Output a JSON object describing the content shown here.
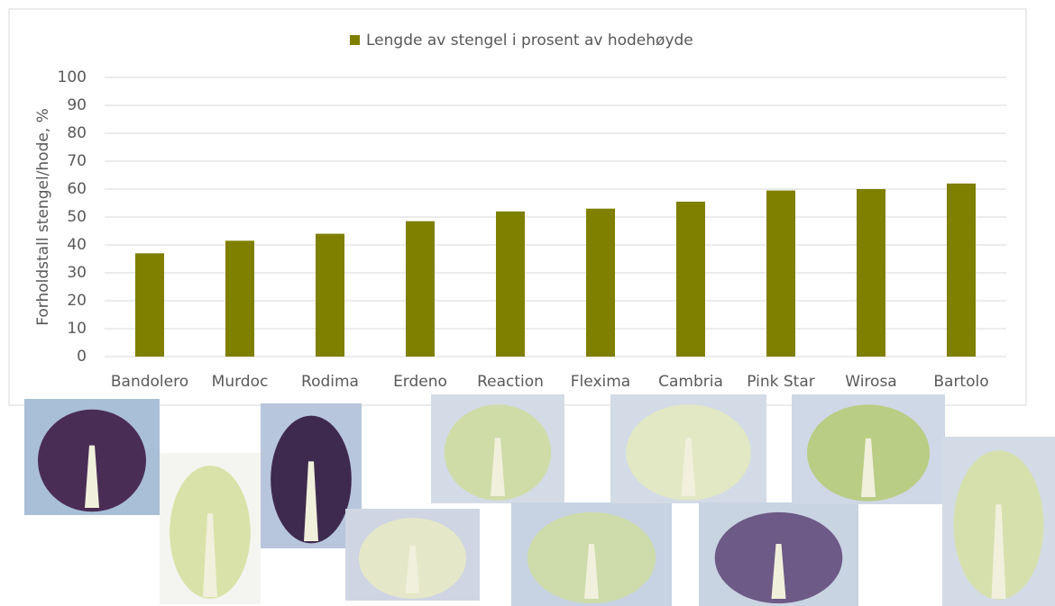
{
  "chart_data": {
    "type": "bar",
    "legend": "Lengde av stengel i prosent av hodehøyde",
    "y_label": "Forholdstall stengel/hode, %",
    "categories": [
      "Bandolero",
      "Murdoc",
      "Rodima",
      "Erdeno",
      "Reaction",
      "Flexima",
      "Cambria",
      "Pink Star",
      "Wirosa",
      "Bartolo"
    ],
    "values": [
      37,
      41.5,
      44,
      48.5,
      52,
      53,
      55.5,
      59.5,
      60,
      62
    ],
    "color": "#7f7f00",
    "ylim": [
      0,
      100
    ],
    "yticks": [
      0,
      10,
      20,
      30,
      40,
      50,
      60,
      70,
      80,
      90,
      100
    ],
    "grid": true
  }
}
